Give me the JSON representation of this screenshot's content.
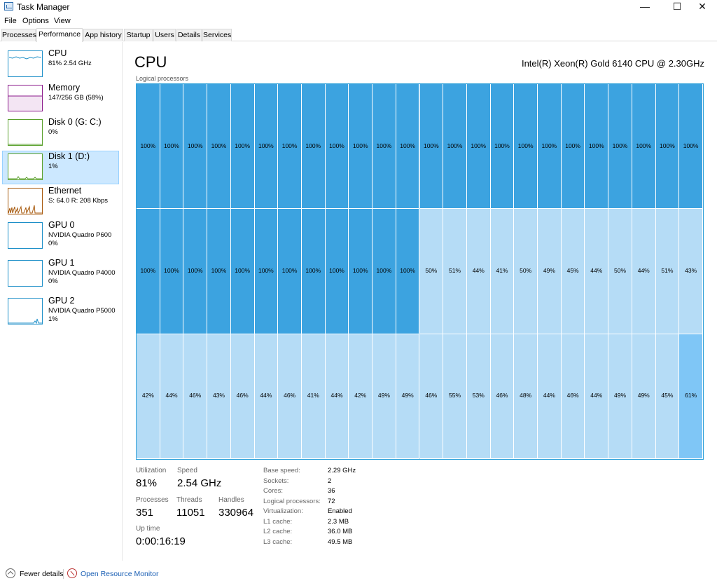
{
  "window": {
    "title": "Task Manager",
    "minimize": "—",
    "maximize": "☐",
    "close": "✕"
  },
  "menu": [
    "File",
    "Options",
    "View"
  ],
  "tabs": [
    "Processes",
    "Performance",
    "App history",
    "Startup",
    "Users",
    "Details",
    "Services"
  ],
  "active_tab": "Performance",
  "sidebar": [
    {
      "name": "CPU",
      "sub1": "81%  2.54 GHz",
      "sub2": "",
      "color": "#1d8fc8"
    },
    {
      "name": "Memory",
      "sub1": "147/256 GB (58%)",
      "sub2": "",
      "color": "#8b1a8b"
    },
    {
      "name": "Disk 0 (G: C:)",
      "sub1": "0%",
      "sub2": "",
      "color": "#5aa02c"
    },
    {
      "name": "Disk 1 (D:)",
      "sub1": "1%",
      "sub2": "",
      "color": "#5aa02c"
    },
    {
      "name": "Ethernet",
      "sub1": "S: 64.0  R: 208 Kbps",
      "sub2": "",
      "color": "#a7590c"
    },
    {
      "name": "GPU 0",
      "sub1": "NVIDIA Quadro P600",
      "sub2": "0%",
      "color": "#1d8fc8"
    },
    {
      "name": "GPU 1",
      "sub1": "NVIDIA Quadro P4000",
      "sub2": "0%",
      "color": "#1d8fc8"
    },
    {
      "name": "GPU 2",
      "sub1": "NVIDIA Quadro P5000",
      "sub2": "1%",
      "color": "#1d8fc8"
    }
  ],
  "selected_sidebar": "Disk 1 (D:)",
  "main": {
    "title": "CPU",
    "model": "Intel(R) Xeon(R) Gold 6140 CPU @ 2.30GHz",
    "grid_label": "Logical processors"
  },
  "logical_processors": [
    100,
    100,
    100,
    100,
    100,
    100,
    100,
    100,
    100,
    100,
    100,
    100,
    100,
    100,
    100,
    100,
    100,
    100,
    100,
    100,
    100,
    100,
    100,
    100,
    100,
    100,
    100,
    100,
    100,
    100,
    100,
    100,
    100,
    100,
    100,
    100,
    50,
    51,
    44,
    41,
    50,
    49,
    45,
    44,
    50,
    44,
    51,
    43,
    42,
    44,
    46,
    43,
    46,
    44,
    46,
    41,
    44,
    42,
    49,
    49,
    46,
    55,
    53,
    46,
    48,
    44,
    46,
    44,
    49,
    49,
    45,
    61
  ],
  "grid_colors": {
    "full": "#3ca3e0",
    "mid": "#b5dcf6",
    "high": "#7fc6f6"
  },
  "stats": {
    "utilization_label": "Utilization",
    "utilization": "81%",
    "speed_label": "Speed",
    "speed": "2.54 GHz",
    "processes_label": "Processes",
    "processes": "351",
    "threads_label": "Threads",
    "threads": "11051",
    "handles_label": "Handles",
    "handles": "330964",
    "uptime_label": "Up time",
    "uptime": "0:00:16:19"
  },
  "details": [
    {
      "k": "Base speed:",
      "v": "2.29 GHz"
    },
    {
      "k": "Sockets:",
      "v": "2"
    },
    {
      "k": "Cores:",
      "v": "36"
    },
    {
      "k": "Logical processors:",
      "v": "72"
    },
    {
      "k": "Virtualization:",
      "v": "Enabled"
    },
    {
      "k": "L1 cache:",
      "v": "2.3 MB"
    },
    {
      "k": "L2 cache:",
      "v": "36.0 MB"
    },
    {
      "k": "L3 cache:",
      "v": "49.5 MB"
    }
  ],
  "footer": {
    "fewer": "Fewer details",
    "monitor": "Open Resource Monitor"
  }
}
